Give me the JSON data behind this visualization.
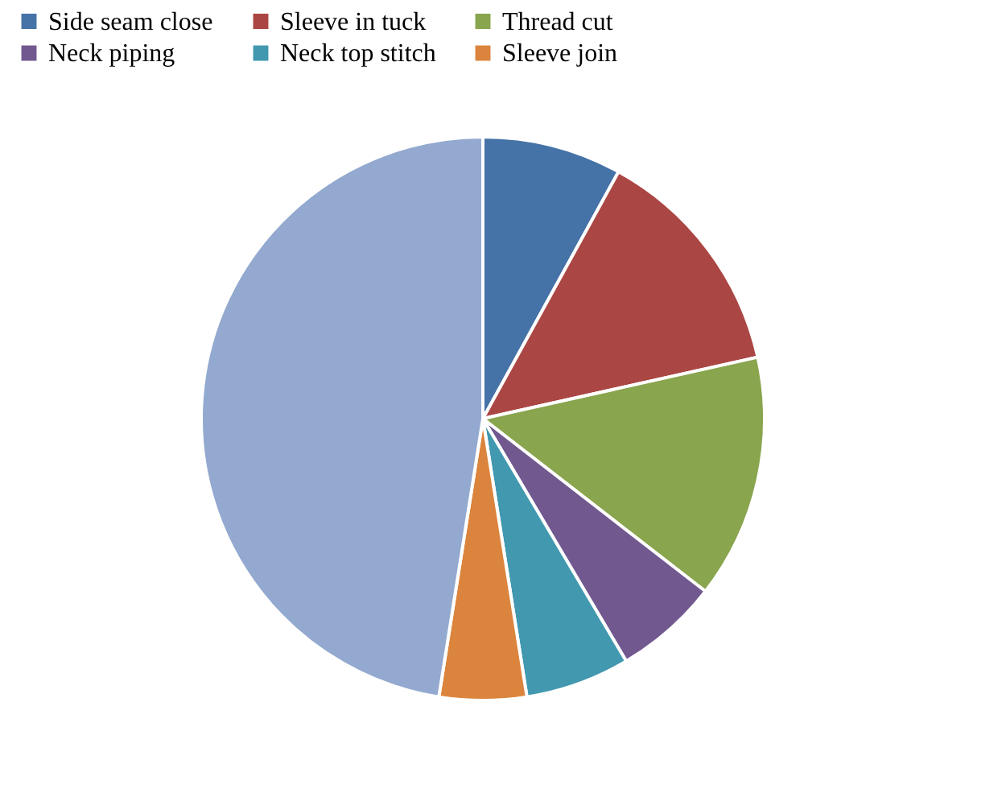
{
  "chart_data": {
    "type": "pie",
    "categories": [
      "Side seam close",
      "Sleeve in tuck",
      "Thread cut",
      "Neck piping",
      "Neck top stitch",
      "Sleeve join",
      null
    ],
    "values": [
      8,
      13.5,
      14,
      6,
      6,
      5,
      47.5
    ],
    "colors": [
      "#4572a7",
      "#aa4643",
      "#89a54e",
      "#71588f",
      "#4198af",
      "#db843d",
      "#93a9cf"
    ],
    "legend": "top"
  }
}
